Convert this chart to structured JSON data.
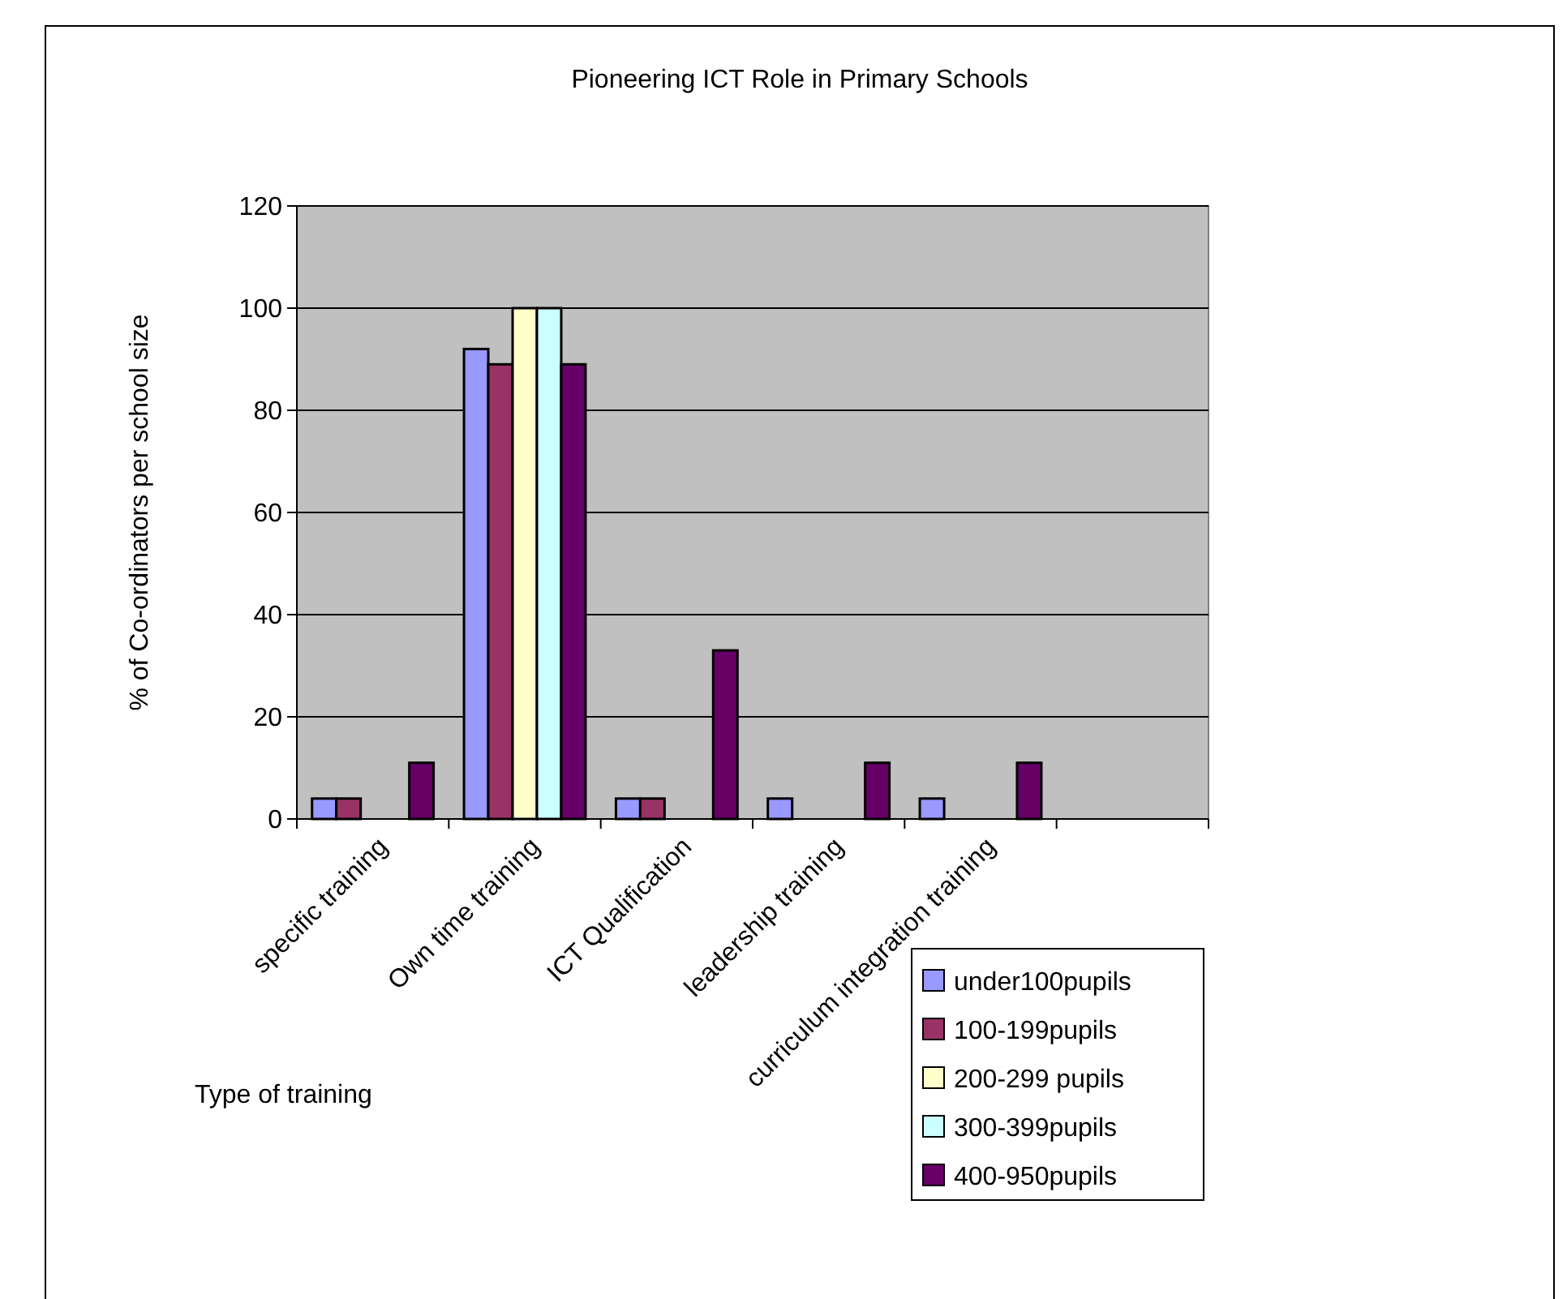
{
  "chart_data": {
    "type": "bar",
    "title": "Pioneering ICT Role in Primary Schools",
    "xlabel": "Type of training",
    "ylabel": "% of Co-ordinators per school size",
    "categories": [
      "specific training",
      "Own time training",
      "ICT Qualification",
      "leadership training",
      "curriculum integration training",
      null
    ],
    "series": [
      {
        "name": "under100pupils",
        "color": "#9999ff",
        "values": [
          4,
          92,
          4,
          4,
          4,
          null
        ]
      },
      {
        "name": "100-199pupils",
        "color": "#993366",
        "values": [
          4,
          89,
          4,
          null,
          null,
          null
        ]
      },
      {
        "name": "200-299 pupils",
        "color": "#ffffcc",
        "values": [
          null,
          100,
          null,
          null,
          null,
          null
        ]
      },
      {
        "name": "300-399pupils",
        "color": "#ccffff",
        "values": [
          null,
          100,
          null,
          null,
          null,
          null
        ]
      },
      {
        "name": "400-950pupils",
        "color": "#660066",
        "values": [
          11,
          89,
          33,
          11,
          11,
          null
        ]
      }
    ],
    "ylim": [
      0,
      120
    ],
    "yticks": [
      0,
      20,
      40,
      60,
      80,
      100,
      120
    ],
    "grid": "y",
    "legend": "bottom right"
  }
}
